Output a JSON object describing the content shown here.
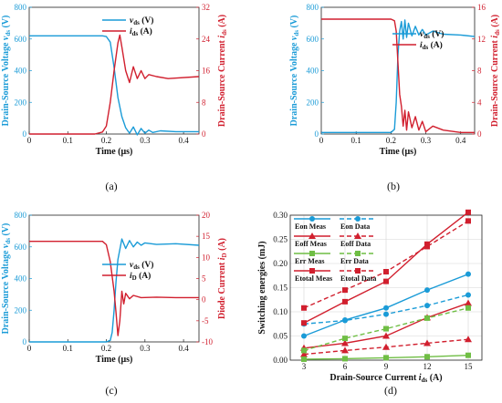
{
  "colors": {
    "blue": "#1a9bd7",
    "red": "#d11f2e",
    "green": "#6fbe44",
    "axis": "#222222"
  },
  "chart_data": [
    {
      "id": "a",
      "panel_label": "(a)",
      "type": "line",
      "xlabel": "Time (μs)",
      "ylabel_left": "Drain-Source Voltage v_ds (V)",
      "ylabel_right": "Drain-Source Current i_ds (A)",
      "xlim": [
        0,
        0.44
      ],
      "xticks": [
        "0",
        "0.1",
        "0.2",
        "0.3",
        "0.4"
      ],
      "ylim_left": [
        0,
        800
      ],
      "yticks_left": [
        "0",
        "200",
        "400",
        "600",
        "800"
      ],
      "ylim_right": [
        0,
        32
      ],
      "yticks_right": [
        "0",
        "8",
        "16",
        "24",
        "32"
      ],
      "series": [
        {
          "name": "vds (V)",
          "axis": "left",
          "color": "#1a9bd7",
          "points": [
            [
              0,
              620
            ],
            [
              0.19,
              620
            ],
            [
              0.2,
              615
            ],
            [
              0.21,
              580
            ],
            [
              0.22,
              420
            ],
            [
              0.23,
              230
            ],
            [
              0.24,
              110
            ],
            [
              0.25,
              40
            ],
            [
              0.26,
              5
            ],
            [
              0.27,
              45
            ],
            [
              0.28,
              -5
            ],
            [
              0.29,
              35
            ],
            [
              0.3,
              5
            ],
            [
              0.31,
              25
            ],
            [
              0.32,
              10
            ],
            [
              0.34,
              20
            ],
            [
              0.38,
              15
            ],
            [
              0.44,
              15
            ]
          ]
        },
        {
          "name": "ids (A)",
          "axis": "right",
          "color": "#d11f2e",
          "points": [
            [
              0,
              0
            ],
            [
              0.17,
              0
            ],
            [
              0.19,
              0.5
            ],
            [
              0.2,
              2
            ],
            [
              0.21,
              8
            ],
            [
              0.22,
              16
            ],
            [
              0.23,
              23
            ],
            [
              0.235,
              25
            ],
            [
              0.24,
              22
            ],
            [
              0.25,
              16
            ],
            [
              0.26,
              13
            ],
            [
              0.27,
              17
            ],
            [
              0.28,
              14
            ],
            [
              0.29,
              16
            ],
            [
              0.3,
              14
            ],
            [
              0.31,
              15
            ],
            [
              0.33,
              14.5
            ],
            [
              0.36,
              14
            ],
            [
              0.44,
              14.5
            ]
          ]
        }
      ]
    },
    {
      "id": "b",
      "panel_label": "(b)",
      "type": "line",
      "xlabel": "Time (μs)",
      "ylabel_left": "Drain-Source Voltage v_ds (V)",
      "ylabel_right": "Drain-Source Current i_ds (A)",
      "xlim": [
        0,
        0.44
      ],
      "xticks": [
        "0",
        "0.1",
        "0.2",
        "0.3",
        "0.4"
      ],
      "ylim_left": [
        0,
        800
      ],
      "yticks_left": [
        "0",
        "200",
        "400",
        "600",
        "800"
      ],
      "ylim_right": [
        0,
        16
      ],
      "yticks_right": [
        "0",
        "4",
        "8",
        "12",
        "16"
      ],
      "series": [
        {
          "name": "vds (V)",
          "axis": "left",
          "color": "#1a9bd7",
          "points": [
            [
              0,
              10
            ],
            [
              0.2,
              10
            ],
            [
              0.21,
              30
            ],
            [
              0.215,
              200
            ],
            [
              0.22,
              500
            ],
            [
              0.225,
              650
            ],
            [
              0.23,
              710
            ],
            [
              0.235,
              600
            ],
            [
              0.24,
              720
            ],
            [
              0.245,
              610
            ],
            [
              0.25,
              700
            ],
            [
              0.26,
              620
            ],
            [
              0.27,
              680
            ],
            [
              0.28,
              625
            ],
            [
              0.29,
              660
            ],
            [
              0.3,
              625
            ],
            [
              0.32,
              650
            ],
            [
              0.35,
              630
            ],
            [
              0.4,
              625
            ],
            [
              0.44,
              615
            ]
          ]
        },
        {
          "name": "ids (A)",
          "axis": "right",
          "color": "#d11f2e",
          "points": [
            [
              0,
              14.5
            ],
            [
              0.2,
              14.5
            ],
            [
              0.21,
              14.3
            ],
            [
              0.215,
              13
            ],
            [
              0.22,
              9
            ],
            [
              0.225,
              5
            ],
            [
              0.23,
              3.5
            ],
            [
              0.235,
              1
            ],
            [
              0.24,
              3
            ],
            [
              0.245,
              0.5
            ],
            [
              0.25,
              2.8
            ],
            [
              0.26,
              0.8
            ],
            [
              0.27,
              2.2
            ],
            [
              0.28,
              0.5
            ],
            [
              0.29,
              1.6
            ],
            [
              0.3,
              0.3
            ],
            [
              0.32,
              1
            ],
            [
              0.35,
              0.5
            ],
            [
              0.4,
              0.2
            ],
            [
              0.44,
              0.2
            ]
          ]
        }
      ]
    },
    {
      "id": "c",
      "panel_label": "(c)",
      "type": "line",
      "xlabel": "Time (μs)",
      "ylabel_left": "Drain-Source Voltage v_ds (V)",
      "ylabel_right": "Diode Current i_D (A)",
      "xlim": [
        0,
        0.44
      ],
      "xticks": [
        "0",
        "0.1",
        "0.2",
        "0.3",
        "0.4"
      ],
      "ylim_left": [
        0,
        800
      ],
      "yticks_left": [
        "0",
        "200",
        "400",
        "600",
        "800"
      ],
      "ylim_right": [
        -10,
        20
      ],
      "yticks_right": [
        "-10",
        "-5",
        "0",
        "5",
        "10",
        "15",
        "20"
      ],
      "series": [
        {
          "name": "vds (V)",
          "axis": "left",
          "color": "#1a9bd7",
          "points": [
            [
              0,
              0
            ],
            [
              0.2,
              0
            ],
            [
              0.21,
              10
            ],
            [
              0.215,
              60
            ],
            [
              0.22,
              200
            ],
            [
              0.225,
              380
            ],
            [
              0.23,
              520
            ],
            [
              0.24,
              650
            ],
            [
              0.25,
              590
            ],
            [
              0.26,
              640
            ],
            [
              0.27,
              600
            ],
            [
              0.28,
              630
            ],
            [
              0.29,
              610
            ],
            [
              0.3,
              625
            ],
            [
              0.33,
              615
            ],
            [
              0.38,
              620
            ],
            [
              0.44,
              610
            ]
          ]
        },
        {
          "name": "iD (A)",
          "axis": "right",
          "color": "#d11f2e",
          "points": [
            [
              0,
              13.8
            ],
            [
              0.19,
              13.8
            ],
            [
              0.2,
              13
            ],
            [
              0.21,
              9
            ],
            [
              0.22,
              2
            ],
            [
              0.225,
              -3
            ],
            [
              0.23,
              -8.5
            ],
            [
              0.235,
              -5
            ],
            [
              0.24,
              2
            ],
            [
              0.245,
              -1
            ],
            [
              0.25,
              1.5
            ],
            [
              0.26,
              0.2
            ],
            [
              0.27,
              1
            ],
            [
              0.29,
              0.5
            ],
            [
              0.33,
              0.6
            ],
            [
              0.38,
              0.5
            ],
            [
              0.44,
              0.5
            ]
          ]
        }
      ]
    },
    {
      "id": "d",
      "panel_label": "(d)",
      "type": "line",
      "xlabel": "Drain-Source Current i_ds (A)",
      "ylabel": "Switching energies (mJ)",
      "xlim": [
        2,
        16
      ],
      "xticks": [
        3,
        6,
        9,
        12,
        15
      ],
      "ylim": [
        0,
        0.3
      ],
      "yticks": [
        "0.00",
        "0.05",
        "0.10",
        "0.15",
        "0.20",
        "0.25",
        "0.30"
      ],
      "x": [
        3,
        6,
        9,
        12,
        15
      ],
      "series": [
        {
          "name": "Eon Meas",
          "color": "#1a9bd7",
          "marker": "circle",
          "dashed": false,
          "values": [
            0.05,
            0.083,
            0.108,
            0.145,
            0.178
          ]
        },
        {
          "name": "Eon Data",
          "color": "#1a9bd7",
          "marker": "circle",
          "dashed": true,
          "values": [
            0.075,
            0.082,
            0.095,
            0.113,
            0.135
          ]
        },
        {
          "name": "Eoff Meas",
          "color": "#d11f2e",
          "marker": "triangle",
          "dashed": false,
          "values": [
            0.025,
            0.035,
            0.05,
            0.088,
            0.118
          ]
        },
        {
          "name": "Eoff Data",
          "color": "#d11f2e",
          "marker": "triangle",
          "dashed": true,
          "values": [
            0.012,
            0.02,
            0.027,
            0.035,
            0.043
          ]
        },
        {
          "name": "Err Meas",
          "color": "#6fbe44",
          "marker": "square",
          "dashed": false,
          "values": [
            0.002,
            0.003,
            0.005,
            0.007,
            0.01
          ]
        },
        {
          "name": "Err Data",
          "color": "#6fbe44",
          "marker": "square",
          "dashed": true,
          "values": [
            0.02,
            0.045,
            0.065,
            0.087,
            0.108
          ]
        },
        {
          "name": "Etotal Meas",
          "color": "#d11f2e",
          "marker": "square",
          "dashed": false,
          "values": [
            0.077,
            0.121,
            0.163,
            0.24,
            0.306
          ]
        },
        {
          "name": "Etotal Data",
          "color": "#d11f2e",
          "marker": "square",
          "dashed": true,
          "values": [
            0.108,
            0.145,
            0.183,
            0.235,
            0.288
          ]
        }
      ]
    }
  ]
}
